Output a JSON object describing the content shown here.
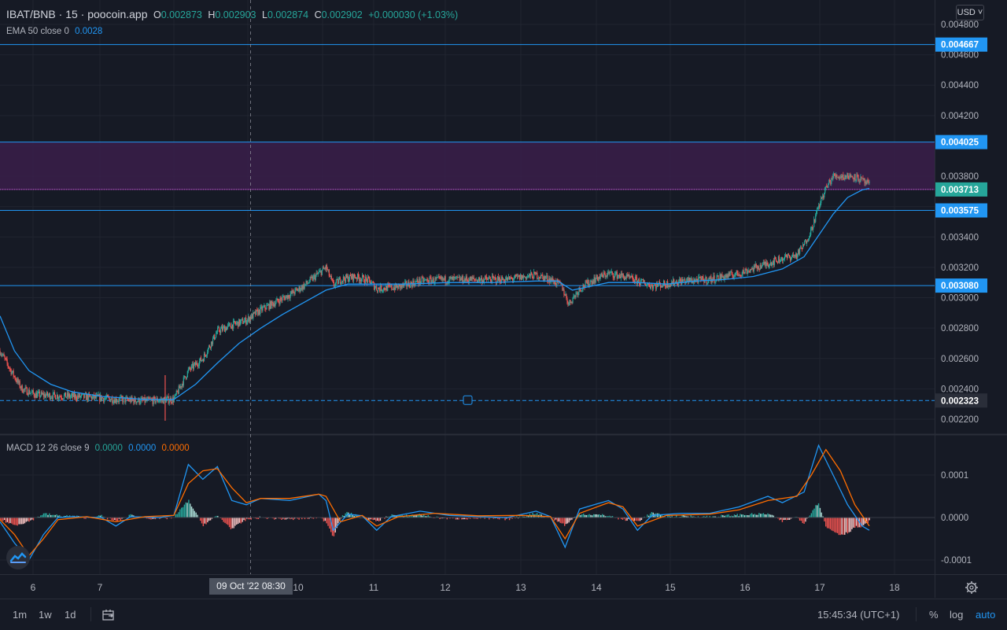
{
  "header": {
    "symbol": "IBAT/BNB · 15 · poocoin.app",
    "o_label": "O",
    "o_value": "0.002873",
    "h_label": "H",
    "h_value": "0.002903",
    "l_label": "L",
    "l_value": "0.002874",
    "c_label": "C",
    "c_value": "0.002902",
    "change": "+0.000030 (+1.03%)",
    "currency": "USD"
  },
  "ema_legend": {
    "label": "EMA 50 close 0",
    "value": "0.0028"
  },
  "macd_legend": {
    "label": "MACD 12 26 close 9",
    "v1": "0.0000",
    "v2": "0.0000",
    "v3": "0.0000"
  },
  "colors": {
    "background": "#161a25",
    "grid": "#202430",
    "up": "#26a69a",
    "down": "#ef5350",
    "ema": "#2196f3",
    "macd": "#2196f3",
    "signal": "#ff6d00",
    "hline": "#2196f3",
    "zone": "#3a1f4a"
  },
  "chart_data": [
    {
      "type": "candlestick",
      "title": "IBAT/BNB · 15 · poocoin.app",
      "x_tick_labels": [
        "6",
        "7",
        "10",
        "11",
        "12",
        "13",
        "14",
        "15",
        "16",
        "17",
        "18"
      ],
      "y_tick_labels": [
        "0.004800",
        "0.004600",
        "0.004400",
        "0.004200",
        "0.003800",
        "0.003400",
        "0.003200",
        "0.003000",
        "0.002800",
        "0.002600",
        "0.002400",
        "0.002200"
      ],
      "ylim": [
        0.00212,
        0.0049
      ],
      "horizontal_lines": [
        {
          "value": 0.004667,
          "label": "0.004667"
        },
        {
          "value": 0.004025,
          "label": "0.004025"
        },
        {
          "value": 0.003575,
          "label": "0.003575"
        },
        {
          "value": 0.00308,
          "label": "0.003080"
        }
      ],
      "dashed_line": {
        "value": 0.002323,
        "label": "0.002323"
      },
      "zone": {
        "top": 0.004025,
        "bottom": 0.003713
      },
      "current_price": {
        "value": 0.003713,
        "label": "0.003713"
      },
      "crosshair_label": "09 Oct '22   08:30",
      "price_path": [
        [
          0,
          0.00265
        ],
        [
          1.5,
          0.00252
        ],
        [
          3,
          0.0024
        ],
        [
          5,
          0.00236
        ],
        [
          10,
          0.00235
        ],
        [
          14,
          0.00234
        ],
        [
          16,
          0.00233
        ],
        [
          20,
          0.00232
        ],
        [
          24,
          0.00233
        ],
        [
          26,
          0.00252
        ],
        [
          28,
          0.0026
        ],
        [
          30,
          0.00278
        ],
        [
          32,
          0.00282
        ],
        [
          34,
          0.00285
        ],
        [
          36,
          0.00292
        ],
        [
          38,
          0.00297
        ],
        [
          40,
          0.00302
        ],
        [
          42,
          0.00308
        ],
        [
          44,
          0.00316
        ],
        [
          45,
          0.0032
        ],
        [
          46,
          0.00308
        ],
        [
          47,
          0.00312
        ],
        [
          49,
          0.00314
        ],
        [
          51,
          0.00311
        ],
        [
          52,
          0.00306
        ],
        [
          55,
          0.00307
        ],
        [
          58,
          0.00311
        ],
        [
          62,
          0.00312
        ],
        [
          66,
          0.00312
        ],
        [
          70,
          0.00312
        ],
        [
          74,
          0.00315
        ],
        [
          76,
          0.00312
        ],
        [
          77.5,
          0.00308
        ],
        [
          78.5,
          0.00296
        ],
        [
          80,
          0.00306
        ],
        [
          82,
          0.00312
        ],
        [
          84,
          0.00316
        ],
        [
          86,
          0.00314
        ],
        [
          88,
          0.00311
        ],
        [
          90,
          0.00308
        ],
        [
          92,
          0.00309
        ],
        [
          94,
          0.00311
        ],
        [
          98,
          0.00312
        ],
        [
          102,
          0.00316
        ],
        [
          105,
          0.00321
        ],
        [
          108,
          0.00326
        ],
        [
          110,
          0.00328
        ],
        [
          111,
          0.00335
        ],
        [
          112,
          0.00345
        ],
        [
          113,
          0.0036
        ],
        [
          114,
          0.00372
        ],
        [
          115,
          0.0038
        ],
        [
          116,
          0.0038
        ],
        [
          118,
          0.0038
        ],
        [
          120,
          0.00374
        ]
      ],
      "ema_path": [
        [
          0,
          0.00288
        ],
        [
          2,
          0.00265
        ],
        [
          4,
          0.00252
        ],
        [
          7,
          0.00243
        ],
        [
          10,
          0.00238
        ],
        [
          14,
          0.00235
        ],
        [
          20,
          0.00233
        ],
        [
          24,
          0.00233
        ],
        [
          27,
          0.00243
        ],
        [
          30,
          0.00257
        ],
        [
          33,
          0.0027
        ],
        [
          36,
          0.0028
        ],
        [
          39,
          0.00289
        ],
        [
          42,
          0.00297
        ],
        [
          45,
          0.00305
        ],
        [
          48,
          0.00309
        ],
        [
          52,
          0.00309
        ],
        [
          56,
          0.00309
        ],
        [
          62,
          0.0031
        ],
        [
          68,
          0.0031
        ],
        [
          74,
          0.00311
        ],
        [
          77,
          0.00311
        ],
        [
          79,
          0.00305
        ],
        [
          81,
          0.00307
        ],
        [
          84,
          0.0031
        ],
        [
          88,
          0.0031
        ],
        [
          92,
          0.00309
        ],
        [
          96,
          0.00311
        ],
        [
          100,
          0.00312
        ],
        [
          104,
          0.00314
        ],
        [
          108,
          0.00319
        ],
        [
          111,
          0.00327
        ],
        [
          113,
          0.00341
        ],
        [
          115,
          0.00355
        ],
        [
          117,
          0.00366
        ],
        [
          119,
          0.00371
        ],
        [
          120,
          0.00372
        ]
      ]
    },
    {
      "type": "line",
      "title": "MACD 12 26 close 9",
      "y_tick_labels": [
        "0.0001",
        "0.0000",
        "-0.0001"
      ],
      "ylim": [
        -0.000112,
        0.000178
      ],
      "macd_path": [
        [
          0,
          -1e-05
        ],
        [
          2,
          -6e-05
        ],
        [
          4,
          -0.0001
        ],
        [
          6,
          -4e-05
        ],
        [
          8,
          0.0
        ],
        [
          10,
          2e-06
        ],
        [
          14,
          0.0
        ],
        [
          16,
          -2e-05
        ],
        [
          18,
          2e-06
        ],
        [
          22,
          0.0
        ],
        [
          24,
          5e-06
        ],
        [
          26,
          0.000125
        ],
        [
          28,
          9e-05
        ],
        [
          30,
          0.00012
        ],
        [
          32,
          4e-05
        ],
        [
          34,
          3e-05
        ],
        [
          36,
          4.5e-05
        ],
        [
          40,
          4e-05
        ],
        [
          44,
          5.5e-05
        ],
        [
          45,
          4e-05
        ],
        [
          46,
          -3e-05
        ],
        [
          48,
          8e-06
        ],
        [
          50,
          4e-06
        ],
        [
          52,
          -3e-05
        ],
        [
          54,
          2e-06
        ],
        [
          58,
          1.5e-05
        ],
        [
          62,
          5e-06
        ],
        [
          66,
          2e-06
        ],
        [
          70,
          0.0
        ],
        [
          74,
          1.5e-05
        ],
        [
          76,
          2e-06
        ],
        [
          78,
          -7e-05
        ],
        [
          80,
          2e-05
        ],
        [
          82,
          3e-05
        ],
        [
          84,
          4e-05
        ],
        [
          86,
          2e-05
        ],
        [
          88,
          -3e-05
        ],
        [
          90,
          5e-06
        ],
        [
          94,
          1e-05
        ],
        [
          98,
          1e-05
        ],
        [
          102,
          2.5e-05
        ],
        [
          106,
          5e-05
        ],
        [
          108,
          3.5e-05
        ],
        [
          111,
          6e-05
        ],
        [
          113,
          0.00017
        ],
        [
          115,
          0.0001
        ],
        [
          117,
          3e-05
        ],
        [
          119,
          -2e-05
        ],
        [
          120,
          -3e-05
        ]
      ],
      "signal_path": [
        [
          0,
          -5e-06
        ],
        [
          2,
          -4e-05
        ],
        [
          4,
          -9e-05
        ],
        [
          6,
          -5e-05
        ],
        [
          8,
          -5e-06
        ],
        [
          12,
          2e-06
        ],
        [
          16,
          -1e-05
        ],
        [
          20,
          2e-06
        ],
        [
          24,
          5e-06
        ],
        [
          26,
          8e-05
        ],
        [
          28,
          0.00011
        ],
        [
          30,
          0.000115
        ],
        [
          32,
          7e-05
        ],
        [
          34,
          3.5e-05
        ],
        [
          36,
          4.5e-05
        ],
        [
          40,
          4.5e-05
        ],
        [
          44,
          5.5e-05
        ],
        [
          45,
          5e-05
        ],
        [
          47,
          -1e-05
        ],
        [
          50,
          5e-06
        ],
        [
          52,
          -2e-05
        ],
        [
          55,
          2e-06
        ],
        [
          60,
          1e-05
        ],
        [
          66,
          4e-06
        ],
        [
          72,
          5e-06
        ],
        [
          76,
          2e-06
        ],
        [
          78,
          -5e-05
        ],
        [
          80,
          1e-05
        ],
        [
          84,
          3.5e-05
        ],
        [
          86,
          2.5e-05
        ],
        [
          88,
          -2e-05
        ],
        [
          92,
          5e-06
        ],
        [
          98,
          8e-06
        ],
        [
          102,
          1.8e-05
        ],
        [
          106,
          4e-05
        ],
        [
          110,
          5e-05
        ],
        [
          112,
          0.0001
        ],
        [
          114,
          0.00016
        ],
        [
          116,
          0.00011
        ],
        [
          118,
          3e-05
        ],
        [
          120,
          -2e-05
        ]
      ]
    }
  ]
}
